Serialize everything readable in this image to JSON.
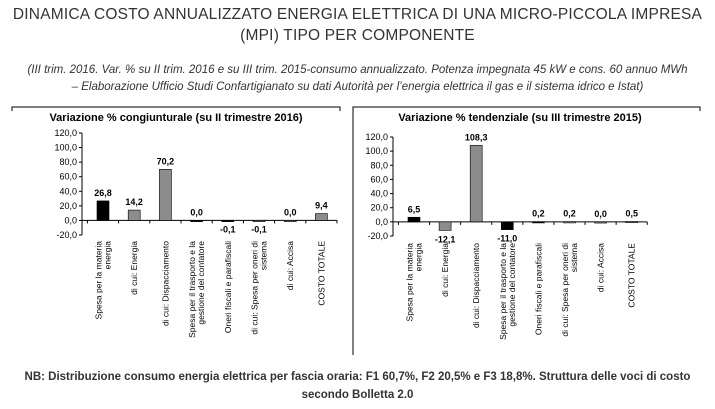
{
  "header": {
    "title_line1": "DINAMICA COSTO ANNUALIZZATO ENERGIA ELETTRICA DI UNA MICRO-PICCOLA IMPRESA",
    "title_line2": "(MPI) TIPO PER COMPONENTE",
    "subtitle_line1": "(III trim. 2016. Var. % su II trim. 2016 e su III trim. 2015-consumo annualizzato. Potenza impegnata 45 kW e cons. 60 annuo MWh",
    "subtitle_line2": "– Elaborazione Ufficio Studi Confartigianato su dati Autorità per l’energia elettrica il gas e il sistema idrico e Istat)"
  },
  "footer": {
    "note_line1": "NB: Distribuzione consumo energia elettrica per fascia oraria: F1 60,7%, F2 20,5% e F3 18,8%. Struttura delle voci di costo",
    "note_line2": "secondo Bolletta 2.0"
  },
  "colors": {
    "black_bar": "#000000",
    "grey_bar": "#8c8c8c",
    "axis": "#000000",
    "bracket": "#000000"
  },
  "chart_data": [
    {
      "type": "bar",
      "title": "Variazione % congiunturale (su II trimestre 2016)",
      "ylim": [
        -20,
        120
      ],
      "yticks": [
        "120,0",
        "100,0",
        "80,0",
        "60,0",
        "40,0",
        "20,0",
        "0,0",
        "-20,0"
      ],
      "categories": [
        [
          "Spesa per la materia",
          "energia"
        ],
        [
          "di cui: Energia"
        ],
        [
          "di cui: Dispacciamento"
        ],
        [
          "Spesa per il trasporto e la",
          "gestione del contatore"
        ],
        [
          "Oneri fiscali e parafiscali"
        ],
        [
          "di cui: Spesa per oneri di",
          "sistema"
        ],
        [
          "di cui: Accisa"
        ],
        [
          "COSTO TOTALE"
        ]
      ],
      "values": [
        26.8,
        14.2,
        70.2,
        0.0,
        -0.1,
        -0.1,
        0.0,
        9.4
      ],
      "labels": [
        "26,8",
        "14,2",
        "70,2",
        "0,0",
        "-0,1",
        "-0,1",
        "0,0",
        "9,4"
      ],
      "bar_colors": [
        "black",
        "grey",
        "grey",
        "black",
        "black",
        "grey",
        "grey",
        "grey"
      ]
    },
    {
      "type": "bar",
      "title": "Variazione % tendenziale (su III trimestre 2015)",
      "ylim": [
        -20,
        120
      ],
      "yticks": [
        "120,0",
        "100,0",
        "80,0",
        "60,0",
        "40,0",
        "20,0",
        "0,0",
        "-20,0"
      ],
      "categories": [
        [
          "Spesa per la materia",
          "energia"
        ],
        [
          "di cui: Energia"
        ],
        [
          "di cui: Dispacciamento"
        ],
        [
          "Spesa per il trasporto e la",
          "gestione del contatore"
        ],
        [
          "Oneri fiscali e parafiscali"
        ],
        [
          "di cui: Spesa per oneri di",
          "sistema"
        ],
        [
          "di cui: Accisa"
        ],
        [
          "COSTO TOTALE"
        ]
      ],
      "values": [
        6.5,
        -12.1,
        108.3,
        -11.0,
        0.2,
        0.2,
        0.0,
        0.5
      ],
      "labels": [
        "6,5",
        "-12,1",
        "108,3",
        "-11,0",
        "0,2",
        "0,2",
        "0,0",
        "0,5"
      ],
      "bar_colors": [
        "black",
        "grey",
        "grey",
        "black",
        "black",
        "grey",
        "grey",
        "grey"
      ]
    }
  ]
}
